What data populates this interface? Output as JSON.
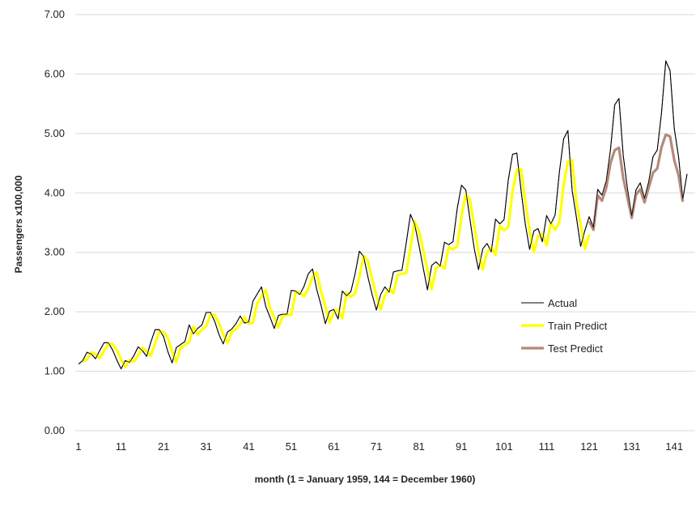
{
  "chart_data": {
    "type": "line",
    "title": "",
    "xlabel": "month (1 = January 1959, 144 = December 1960)",
    "ylabel": "Passengers x100,000",
    "ylim": [
      0,
      7
    ],
    "yticks": [
      "0.00",
      "1.00",
      "2.00",
      "3.00",
      "4.00",
      "5.00",
      "6.00",
      "7.00"
    ],
    "xticks": [
      "1",
      "11",
      "21",
      "31",
      "41",
      "51",
      "61",
      "71",
      "81",
      "91",
      "101",
      "111",
      "121",
      "131",
      "141"
    ],
    "xlim": [
      1,
      144
    ],
    "grid": true,
    "legend_position": "right",
    "series": [
      {
        "name": "Actual",
        "color": "#000000",
        "x_start": 1,
        "values": [
          1.12,
          1.18,
          1.32,
          1.29,
          1.21,
          1.35,
          1.48,
          1.48,
          1.36,
          1.19,
          1.04,
          1.18,
          1.15,
          1.26,
          1.41,
          1.35,
          1.25,
          1.49,
          1.7,
          1.7,
          1.58,
          1.33,
          1.14,
          1.4,
          1.45,
          1.5,
          1.78,
          1.63,
          1.72,
          1.78,
          1.99,
          1.99,
          1.84,
          1.62,
          1.46,
          1.66,
          1.71,
          1.8,
          1.93,
          1.81,
          1.83,
          2.18,
          2.3,
          2.42,
          2.09,
          1.91,
          1.72,
          1.94,
          1.96,
          1.96,
          2.36,
          2.35,
          2.29,
          2.43,
          2.64,
          2.72,
          2.37,
          2.11,
          1.8,
          2.01,
          2.04,
          1.88,
          2.35,
          2.27,
          2.34,
          2.64,
          3.02,
          2.93,
          2.59,
          2.29,
          2.03,
          2.29,
          2.42,
          2.33,
          2.67,
          2.69,
          2.7,
          3.15,
          3.64,
          3.47,
          3.12,
          2.74,
          2.37,
          2.78,
          2.84,
          2.77,
          3.17,
          3.13,
          3.18,
          3.74,
          4.13,
          4.05,
          3.55,
          3.06,
          2.71,
          3.06,
          3.15,
          3.01,
          3.56,
          3.48,
          3.55,
          4.22,
          4.65,
          4.67,
          4.04,
          3.47,
          3.05,
          3.36,
          3.4,
          3.18,
          3.62,
          3.48,
          3.63,
          4.35,
          4.91,
          5.05,
          4.04,
          3.59,
          3.1,
          3.37,
          3.6,
          3.42,
          4.06,
          3.96,
          4.2,
          4.72,
          5.48,
          5.59,
          4.63,
          4.07,
          3.62,
          4.05,
          4.17,
          3.91,
          4.19,
          4.61,
          4.72,
          5.35,
          6.22,
          6.06,
          5.08,
          4.61,
          3.9,
          4.32
        ]
      },
      {
        "name": "Train Predict",
        "color": "#ffff00",
        "x_start": 2,
        "values": [
          1.16,
          1.2,
          1.32,
          1.29,
          1.22,
          1.34,
          1.46,
          1.46,
          1.36,
          1.2,
          1.07,
          1.19,
          1.16,
          1.26,
          1.4,
          1.34,
          1.26,
          1.47,
          1.66,
          1.66,
          1.56,
          1.33,
          1.16,
          1.39,
          1.44,
          1.49,
          1.75,
          1.62,
          1.7,
          1.76,
          1.95,
          1.95,
          1.81,
          1.62,
          1.48,
          1.66,
          1.71,
          1.79,
          1.91,
          1.8,
          1.82,
          2.14,
          2.26,
          2.37,
          2.07,
          1.9,
          1.74,
          1.93,
          1.95,
          1.95,
          2.33,
          2.32,
          2.26,
          2.39,
          2.59,
          2.66,
          2.34,
          2.1,
          1.82,
          2.0,
          2.03,
          1.89,
          2.32,
          2.25,
          2.31,
          2.59,
          2.94,
          2.86,
          2.55,
          2.27,
          2.04,
          2.27,
          2.39,
          2.31,
          2.62,
          2.64,
          2.65,
          3.07,
          3.52,
          3.36,
          3.04,
          2.7,
          2.38,
          2.73,
          2.79,
          2.73,
          3.09,
          3.05,
          3.1,
          3.61,
          3.97,
          3.89,
          3.44,
          3.0,
          2.71,
          3.0,
          3.08,
          2.96,
          3.44,
          3.37,
          3.43,
          4.03,
          4.39,
          4.4,
          3.86,
          3.37,
          3.0,
          3.28,
          3.31,
          3.12,
          3.5,
          3.38,
          3.51,
          4.13,
          4.53,
          4.55,
          3.86,
          3.47,
          3.06,
          3.3
        ]
      },
      {
        "name": "Test Predict",
        "color": "#b5897a",
        "x_start": 121,
        "values": [
          3.52,
          3.38,
          3.96,
          3.87,
          4.08,
          4.5,
          4.72,
          4.76,
          4.25,
          3.92,
          3.58,
          3.97,
          4.06,
          3.84,
          4.09,
          4.34,
          4.41,
          4.77,
          4.98,
          4.95,
          4.55,
          4.3,
          3.85
        ]
      }
    ]
  }
}
